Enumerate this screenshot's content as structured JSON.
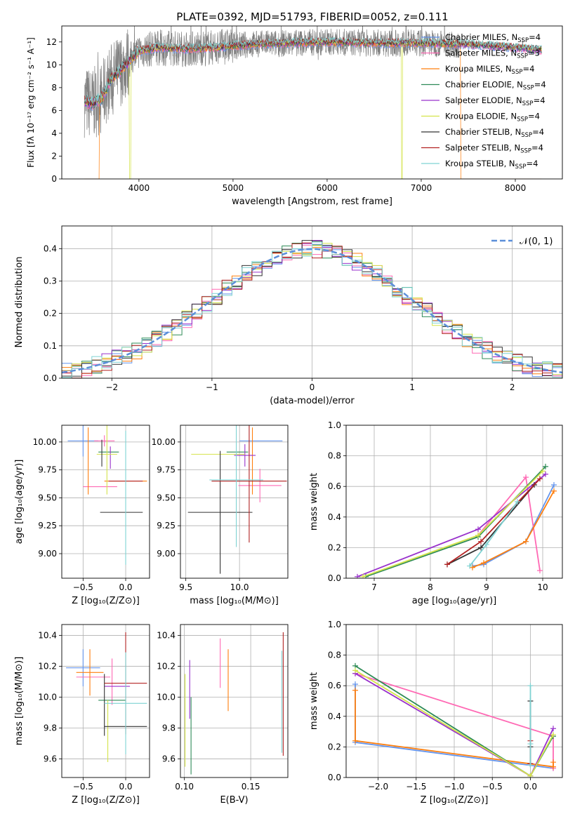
{
  "figure": {
    "title": "PLATE=0392, MJD=51793, FIBERID=0052, z=0.111"
  },
  "colors": {
    "Chabrier MILES": "#6495ed",
    "Salpeter MILES": "#ff69b4",
    "Kroupa MILES": "#ff7f0e",
    "Chabrier ELODIE": "#2e8b57",
    "Salpeter ELODIE": "#9932cc",
    "Kroupa ELODIE": "#d4e34a",
    "Chabrier STELIB": "#333333",
    "Salpeter STELIB": "#b22222",
    "Kroupa STELIB": "#7fd3d3",
    "data": "#7f7f7f",
    "normal": "#5b8fd9"
  },
  "chart_data": [
    {
      "id": "spectrum",
      "type": "line",
      "xlabel": "wavelength [Angstrom, rest frame]",
      "ylabel": "Flux [fλ 10⁻¹⁷ erg cm⁻² s⁻¹ A⁻¹]",
      "xlim": [
        3180,
        8500
      ],
      "ylim": [
        0,
        13.4
      ],
      "xticks": [
        4000,
        5000,
        6000,
        7000,
        8000
      ],
      "yticks": [
        0,
        2,
        4,
        6,
        8,
        10,
        12
      ],
      "grid": false,
      "legend_position": "right",
      "legend": [
        "Chabrier MILES, N_SSP=4",
        "Salpeter MILES, N_SSP=3",
        "Kroupa MILES, N_SSP=4",
        "Chabrier ELODIE, N_SSP=4",
        "Salpeter ELODIE, N_SSP=4",
        "Kroupa ELODIE, N_SSP=4",
        "Chabrier STELIB, N_SSP=4",
        "Salpeter STELIB, N_SSP=4",
        "Kroupa STELIB, N_SSP=4"
      ],
      "x_range": [
        3420,
        8280
      ],
      "continuum": {
        "x": [
          3420,
          3500,
          3600,
          3700,
          3800,
          3900,
          4000,
          4200,
          4500,
          4800,
          5200,
          5600,
          6000,
          6500,
          7000,
          7500,
          8000,
          8280
        ],
        "y": [
          6.8,
          6.6,
          7.0,
          8.7,
          9.5,
          10.4,
          11.2,
          11.5,
          11.4,
          11.5,
          11.8,
          11.9,
          12.0,
          11.9,
          11.9,
          11.8,
          11.5,
          11.3
        ]
      },
      "model_dips": [
        {
          "series": "Kroupa MILES",
          "x_start": 3420,
          "x_end": 3580
        },
        {
          "series": "Kroupa ELODIE",
          "x_start": 3900,
          "x_end": 3915
        },
        {
          "series": "Kroupa ELODIE",
          "x_start": 6790,
          "x_end": 6800
        },
        {
          "series": "Kroupa MILES",
          "x_start": 7420,
          "x_end": 8280
        }
      ]
    },
    {
      "id": "residuals",
      "type": "histogram",
      "xlabel": "(data-model)/error",
      "ylabel": "Normed distribution",
      "xlim": [
        -2.5,
        2.5
      ],
      "ylim": [
        0,
        0.47
      ],
      "xticks": [
        -2,
        -1,
        0,
        1,
        2
      ],
      "yticks": [
        0.0,
        0.1,
        0.2,
        0.3,
        0.4
      ],
      "grid": true,
      "legend": [
        "𝒩(0, 1)"
      ],
      "legend_position": "top-right",
      "bin_width": 0.1
    },
    {
      "id": "age-vs-Z",
      "type": "errorbar",
      "xlabel": "Z [log₁₀(Z/Z⊙)]",
      "ylabel": "age [log₁₀(age/yr)]",
      "xlim": [
        -0.75,
        0.28
      ],
      "ylim": [
        8.78,
        10.15
      ],
      "xticks": [
        -0.5,
        0.0
      ],
      "yticks": [
        9.0,
        9.25,
        9.5,
        9.75,
        10.0
      ],
      "grid": true,
      "points": [
        {
          "series": "Chabrier MILES",
          "x": -0.5,
          "y": 10.01,
          "xerr": 0.18,
          "yerr": 0.14
        },
        {
          "series": "Salpeter MILES",
          "x": -0.3,
          "y": 9.6,
          "xerr": 0.2,
          "yerr": 0.0
        },
        {
          "series": "Salpeter MILES",
          "x": -0.25,
          "y": 10.01,
          "xerr": 0.12,
          "yerr": 0.05
        },
        {
          "series": "Kroupa MILES",
          "x": -0.44,
          "y": 9.83,
          "xerr": 0.0,
          "yerr": 0.3
        },
        {
          "series": "Kroupa MILES",
          "x": 0.0,
          "y": 9.65,
          "xerr": 0.25,
          "yerr": 0.0
        },
        {
          "series": "Chabrier ELODIE",
          "x": -0.2,
          "y": 9.91,
          "xerr": 0.12,
          "yerr": 0.0
        },
        {
          "series": "Salpeter ELODIE",
          "x": -0.18,
          "y": 9.86,
          "xerr": 0.0,
          "yerr": 0.1
        },
        {
          "series": "Kroupa ELODIE",
          "x": -0.22,
          "y": 9.89,
          "xerr": 0.12,
          "yerr": 0.36
        },
        {
          "series": "Chabrier STELIB",
          "x": -0.05,
          "y": 9.37,
          "xerr": 0.25,
          "yerr": 0.0
        },
        {
          "series": "Chabrier STELIB",
          "x": -0.28,
          "y": 9.9,
          "xerr": 0.0,
          "yerr": 0.12
        },
        {
          "series": "Salpeter STELIB",
          "x": 0.0,
          "y": 9.65,
          "xerr": 0.2,
          "yerr": 0.0
        },
        {
          "series": "Kroupa STELIB",
          "x": 0.0,
          "y": 9.5,
          "xerr": 0.0,
          "yerr": 0.6
        }
      ]
    },
    {
      "id": "age-vs-mass",
      "type": "errorbar",
      "xlabel": "mass [log₁₀(M/M⊙)]",
      "ylabel": "",
      "xlim": [
        9.45,
        10.45
      ],
      "ylim": [
        8.78,
        10.15
      ],
      "xticks": [
        9.5,
        10.0
      ],
      "yticks": [
        9.0,
        9.25,
        9.5,
        9.75,
        10.0
      ],
      "grid": true,
      "points": [
        {
          "series": "Chabrier MILES",
          "x": 10.2,
          "y": 10.01,
          "xerr": 0.2,
          "yerr": 0.0
        },
        {
          "series": "Salpeter MILES",
          "x": 10.19,
          "y": 9.61,
          "xerr": 0.2,
          "yerr": 0.15
        },
        {
          "series": "Kroupa MILES",
          "x": 10.12,
          "y": 9.83,
          "xerr": 0.0,
          "yerr": 0.3
        },
        {
          "series": "Chabrier ELODIE",
          "x": 9.98,
          "y": 9.91,
          "xerr": 0.1,
          "yerr": 0.0
        },
        {
          "series": "Salpeter ELODIE",
          "x": 10.05,
          "y": 9.88,
          "xerr": 0.1,
          "yerr": 0.1
        },
        {
          "series": "Kroupa ELODIE",
          "x": 9.8,
          "y": 9.89,
          "xerr": 0.25,
          "yerr": 0.0
        },
        {
          "series": "Chabrier STELIB",
          "x": 9.82,
          "y": 9.37,
          "xerr": 0.3,
          "yerr": 0.55
        },
        {
          "series": "Salpeter STELIB",
          "x": 10.09,
          "y": 9.65,
          "xerr": 0.35,
          "yerr": 0.55
        },
        {
          "series": "Kroupa STELIB",
          "x": 9.97,
          "y": 9.66,
          "xerr": 0.25,
          "yerr": 0.6
        }
      ]
    },
    {
      "id": "weight-vs-age",
      "type": "line",
      "xlabel": "age [log₁₀(age/yr)]",
      "ylabel": "mass weight",
      "xlim": [
        6.5,
        10.35
      ],
      "ylim": [
        0.0,
        1.0
      ],
      "xticks": [
        7,
        8,
        9,
        10
      ],
      "yticks": [
        0.0,
        0.2,
        0.4,
        0.6,
        0.8,
        1.0
      ],
      "grid": true,
      "series": [
        {
          "name": "Chabrier MILES",
          "x": [
            8.75,
            8.95,
            9.7,
            10.2
          ],
          "y": [
            0.08,
            0.09,
            0.24,
            0.61
          ]
        },
        {
          "name": "Salpeter MILES",
          "x": [
            8.85,
            9.7,
            9.95
          ],
          "y": [
            0.28,
            0.66,
            0.05
          ]
        },
        {
          "name": "Kroupa MILES",
          "x": [
            8.75,
            8.95,
            9.7,
            10.2
          ],
          "y": [
            0.07,
            0.1,
            0.24,
            0.57
          ]
        },
        {
          "name": "Chabrier ELODIE",
          "x": [
            6.85,
            8.85,
            10.05
          ],
          "y": [
            0.01,
            0.27,
            0.73
          ]
        },
        {
          "name": "Salpeter ELODIE",
          "x": [
            6.7,
            8.85,
            10.05
          ],
          "y": [
            0.01,
            0.32,
            0.68
          ]
        },
        {
          "name": "Kroupa ELODIE",
          "x": [
            6.8,
            8.85,
            10.0
          ],
          "y": [
            0.01,
            0.28,
            0.7
          ]
        },
        {
          "name": "Chabrier STELIB",
          "x": [
            8.3,
            8.9,
            9.85
          ],
          "y": [
            0.09,
            0.2,
            0.61
          ]
        },
        {
          "name": "Salpeter STELIB",
          "x": [
            8.3,
            8.9,
            9.95
          ],
          "y": [
            0.09,
            0.24,
            0.65
          ]
        },
        {
          "name": "Kroupa STELIB",
          "x": [
            8.7,
            9.0,
            9.55
          ],
          "y": [
            0.08,
            0.22,
            0.5
          ]
        }
      ]
    },
    {
      "id": "mass-vs-Z",
      "type": "errorbar",
      "xlabel": "Z [log₁₀(Z/Z⊙)]",
      "ylabel": "mass [log₁₀(M/M⊙)]",
      "xlim": [
        -0.75,
        0.28
      ],
      "ylim": [
        9.48,
        10.47
      ],
      "xticks": [
        -0.5,
        0.0
      ],
      "yticks": [
        9.6,
        9.8,
        10.0,
        10.2,
        10.4
      ],
      "grid": true,
      "points": [
        {
          "series": "Chabrier MILES",
          "x": -0.5,
          "y": 10.19,
          "xerr": 0.2,
          "yerr": 0.12
        },
        {
          "series": "Salpeter MILES",
          "x": -0.38,
          "y": 10.13,
          "xerr": 0.2,
          "yerr": 0.0
        },
        {
          "series": "Salpeter MILES",
          "x": -0.16,
          "y": 10.1,
          "xerr": 0.0,
          "yerr": 0.15
        },
        {
          "series": "Kroupa MILES",
          "x": -0.42,
          "y": 10.16,
          "xerr": 0.16,
          "yerr": 0.15
        },
        {
          "series": "Chabrier ELODIE",
          "x": -0.16,
          "y": 9.98,
          "xerr": 0.16,
          "yerr": 0.0
        },
        {
          "series": "Salpeter ELODIE",
          "x": -0.1,
          "y": 10.07,
          "xerr": 0.15,
          "yerr": 0.0
        },
        {
          "series": "Kroupa ELODIE",
          "x": -0.21,
          "y": 9.78,
          "xerr": 0.0,
          "yerr": 0.2
        },
        {
          "series": "Chabrier STELIB",
          "x": -0.25,
          "y": 9.95,
          "xerr": 0.0,
          "yerr": 0.2
        },
        {
          "series": "Chabrier STELIB",
          "x": 0.0,
          "y": 9.81,
          "xerr": 0.25,
          "yerr": 0.0
        },
        {
          "series": "Salpeter STELIB",
          "x": 0.0,
          "y": 10.09,
          "xerr": 0.25,
          "yerr": 0.33
        },
        {
          "series": "Kroupa STELIB",
          "x": 0.0,
          "y": 9.96,
          "xerr": 0.25,
          "yerr": 0.33
        }
      ]
    },
    {
      "id": "mass-vs-ebv",
      "type": "errorbar",
      "xlabel": "E(B-V)",
      "ylabel": "",
      "xlim": [
        0.097,
        0.178
      ],
      "ylim": [
        9.48,
        10.47
      ],
      "xticks": [
        0.1,
        0.15
      ],
      "yticks": [
        9.6,
        9.8,
        10.0,
        10.2,
        10.4
      ],
      "grid": true,
      "points": [
        {
          "series": "Kroupa ELODIE",
          "x": 0.1005,
          "y": 9.85,
          "xerr": 0.0,
          "yerr": 0.3
        },
        {
          "series": "Salpeter ELODIE",
          "x": 0.104,
          "y": 10.05,
          "xerr": 0.0,
          "yerr": 0.19
        },
        {
          "series": "Chabrier ELODIE",
          "x": 0.105,
          "y": 9.75,
          "xerr": 0.0,
          "yerr": 0.25
        },
        {
          "series": "Salpeter MILES",
          "x": 0.127,
          "y": 10.22,
          "xerr": 0.0,
          "yerr": 0.16
        },
        {
          "series": "Kroupa MILES",
          "x": 0.133,
          "y": 10.11,
          "xerr": 0.0,
          "yerr": 0.2
        },
        {
          "series": "Kroupa STELIB",
          "x": 0.1735,
          "y": 9.97,
          "xerr": 0.0,
          "yerr": 0.33
        },
        {
          "series": "Salpeter STELIB",
          "x": 0.1745,
          "y": 10.02,
          "xerr": 0.0,
          "yerr": 0.4
        }
      ]
    },
    {
      "id": "weight-vs-Z",
      "type": "line",
      "xlabel": "Z [log₁₀(Z/Z⊙)]",
      "ylabel": "mass weight",
      "xlim": [
        -2.42,
        0.42
      ],
      "ylim": [
        0.0,
        1.0
      ],
      "xticks": [
        -2.0,
        -1.5,
        -1.0,
        -0.5,
        0.0
      ],
      "yticks": [
        0.0,
        0.2,
        0.4,
        0.6,
        0.8,
        1.0
      ],
      "grid": true,
      "series": [
        {
          "name": "Chabrier MILES",
          "x": [
            -2.3,
            -2.3,
            0.3
          ],
          "y": [
            0.61,
            0.23,
            0.06
          ]
        },
        {
          "name": "Salpeter MILES",
          "x": [
            -2.3,
            0.3,
            0.3
          ],
          "y": [
            0.68,
            0.27,
            0.06
          ]
        },
        {
          "name": "Kroupa MILES",
          "x": [
            -2.3,
            -2.3,
            0.3,
            0.3
          ],
          "y": [
            0.57,
            0.24,
            0.07,
            0.1
          ]
        },
        {
          "name": "Chabrier ELODIE",
          "x": [
            -2.3,
            0.0,
            0.3
          ],
          "y": [
            0.73,
            0.01,
            0.27
          ]
        },
        {
          "name": "Salpeter ELODIE",
          "x": [
            -2.3,
            0.0,
            0.3
          ],
          "y": [
            0.68,
            0.01,
            0.32
          ]
        },
        {
          "name": "Kroupa ELODIE",
          "x": [
            -2.3,
            0.0,
            0.3
          ],
          "y": [
            0.7,
            0.01,
            0.28
          ]
        },
        {
          "name": "Chabrier STELIB",
          "x": [
            0.0,
            0.0,
            0.0
          ],
          "y": [
            0.09,
            0.2,
            0.5
          ]
        },
        {
          "name": "Salpeter STELIB",
          "x": [
            0.0,
            0.0
          ],
          "y": [
            0.09,
            0.24
          ]
        },
        {
          "name": "Kroupa STELIB",
          "x": [
            0.0,
            0.0,
            0.0
          ],
          "y": [
            0.08,
            0.22,
            0.6
          ]
        }
      ]
    }
  ]
}
